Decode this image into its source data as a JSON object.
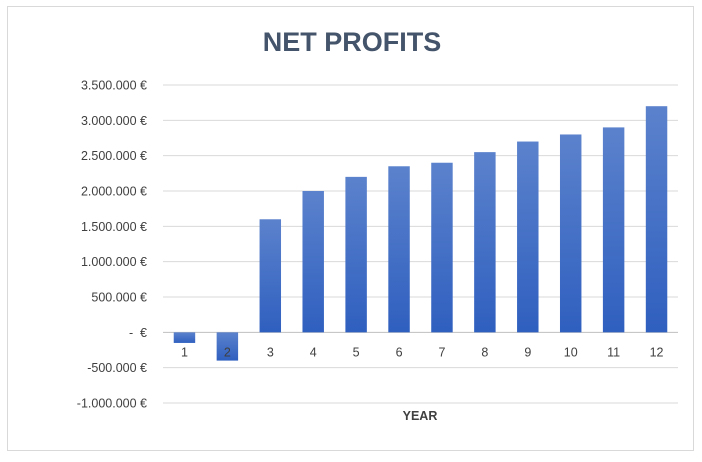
{
  "chart_data": {
    "type": "bar",
    "title": "NET PROFITS",
    "xlabel": "YEAR",
    "ylabel": "",
    "categories": [
      "1",
      "2",
      "3",
      "4",
      "5",
      "6",
      "7",
      "8",
      "9",
      "10",
      "11",
      "12"
    ],
    "values": [
      -150000,
      -400000,
      1600000,
      2000000,
      2200000,
      2350000,
      2400000,
      2550000,
      2700000,
      2800000,
      2900000,
      3200000
    ],
    "ylim": [
      -1000000,
      3500000
    ],
    "yticks": [
      3500000,
      3000000,
      2500000,
      2000000,
      1500000,
      1000000,
      500000,
      0,
      -500000,
      -1000000
    ],
    "ytick_labels": [
      "3.500.000 €",
      "3.000.000 €",
      "2.500.000 €",
      "2.000.000 €",
      "1.500.000 €",
      "1.000.000 €",
      "500.000 €",
      "-  €",
      "-500.000 €",
      "-1.000.000 €"
    ],
    "grid": true,
    "legend": "none",
    "colors": {
      "bar_top": "#5b82cc",
      "bar_bottom": "#2f5fbf",
      "title": "#44546a",
      "grid": "#d9d9d9"
    }
  }
}
